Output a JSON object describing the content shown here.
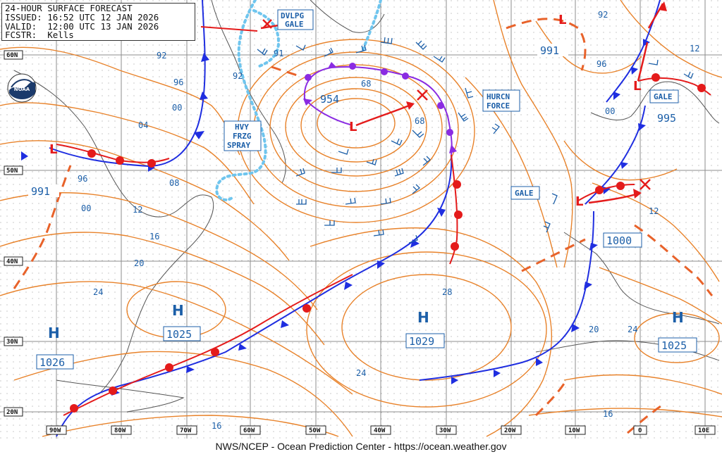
{
  "header": {
    "title": "24-HOUR SURFACE FORECAST",
    "issued": "ISSUED: 16:52 UTC 12 JAN 2026",
    "valid": "VALID:  12:00 UTC 13 JAN 2026",
    "forecaster": "FCSTR:  Kells"
  },
  "logo_text": "NOAA",
  "footer": "NWS/NCEP - Ocean Prediction Center - https://ocean.weather.gov",
  "colors": {
    "isobar": "#e8822a",
    "cold_front": "#1f2ee0",
    "warm_front": "#e41b1b",
    "occluded": "#8a2be2",
    "label": "#1c5fa8",
    "grid": "#8c8c8c",
    "ice": "#6fc5ee"
  },
  "lat_labels": [
    "60N",
    "50N",
    "40N",
    "30N",
    "20N"
  ],
  "lon_labels": [
    "90W",
    "80W",
    "70W",
    "60W",
    "50W",
    "40W",
    "30W",
    "20W",
    "10W",
    "0",
    "10E"
  ],
  "pressure_systems": [
    {
      "type": "L",
      "value": "954",
      "symbol": "low"
    },
    {
      "type": "L",
      "value": "991",
      "symbol": "low"
    },
    {
      "type": "L",
      "value": "991",
      "symbol": "low"
    },
    {
      "type": "L",
      "value": "995",
      "symbol": "low"
    },
    {
      "type": "L",
      "value": "1000",
      "symbol": "low"
    },
    {
      "type": "H",
      "value": "1025",
      "symbol": "high"
    },
    {
      "type": "H",
      "value": "1026",
      "symbol": "high"
    },
    {
      "type": "H",
      "value": "1029",
      "symbol": "high"
    },
    {
      "type": "H",
      "value": "1025",
      "symbol": "high"
    }
  ],
  "warnings": [
    {
      "line1": "DVLPG",
      "line2": "GALE",
      "line3": ""
    },
    {
      "line1": "HURCN",
      "line2": "FORCE",
      "line3": ""
    },
    {
      "line1": "HVY",
      "line2": "FRZG",
      "line3": "SPRAY"
    },
    {
      "line1": "GALE",
      "line2": "",
      "line3": ""
    },
    {
      "line1": "GALE",
      "line2": "",
      "line3": ""
    }
  ],
  "isobar_labels": [
    "92",
    "96",
    "00",
    "04",
    "08",
    "12",
    "16",
    "20",
    "24",
    "28",
    "24",
    "20",
    "24",
    "16",
    "16",
    "12",
    "12",
    "92",
    "96",
    "00",
    "91",
    "92",
    "68",
    "68",
    "96",
    "00"
  ]
}
